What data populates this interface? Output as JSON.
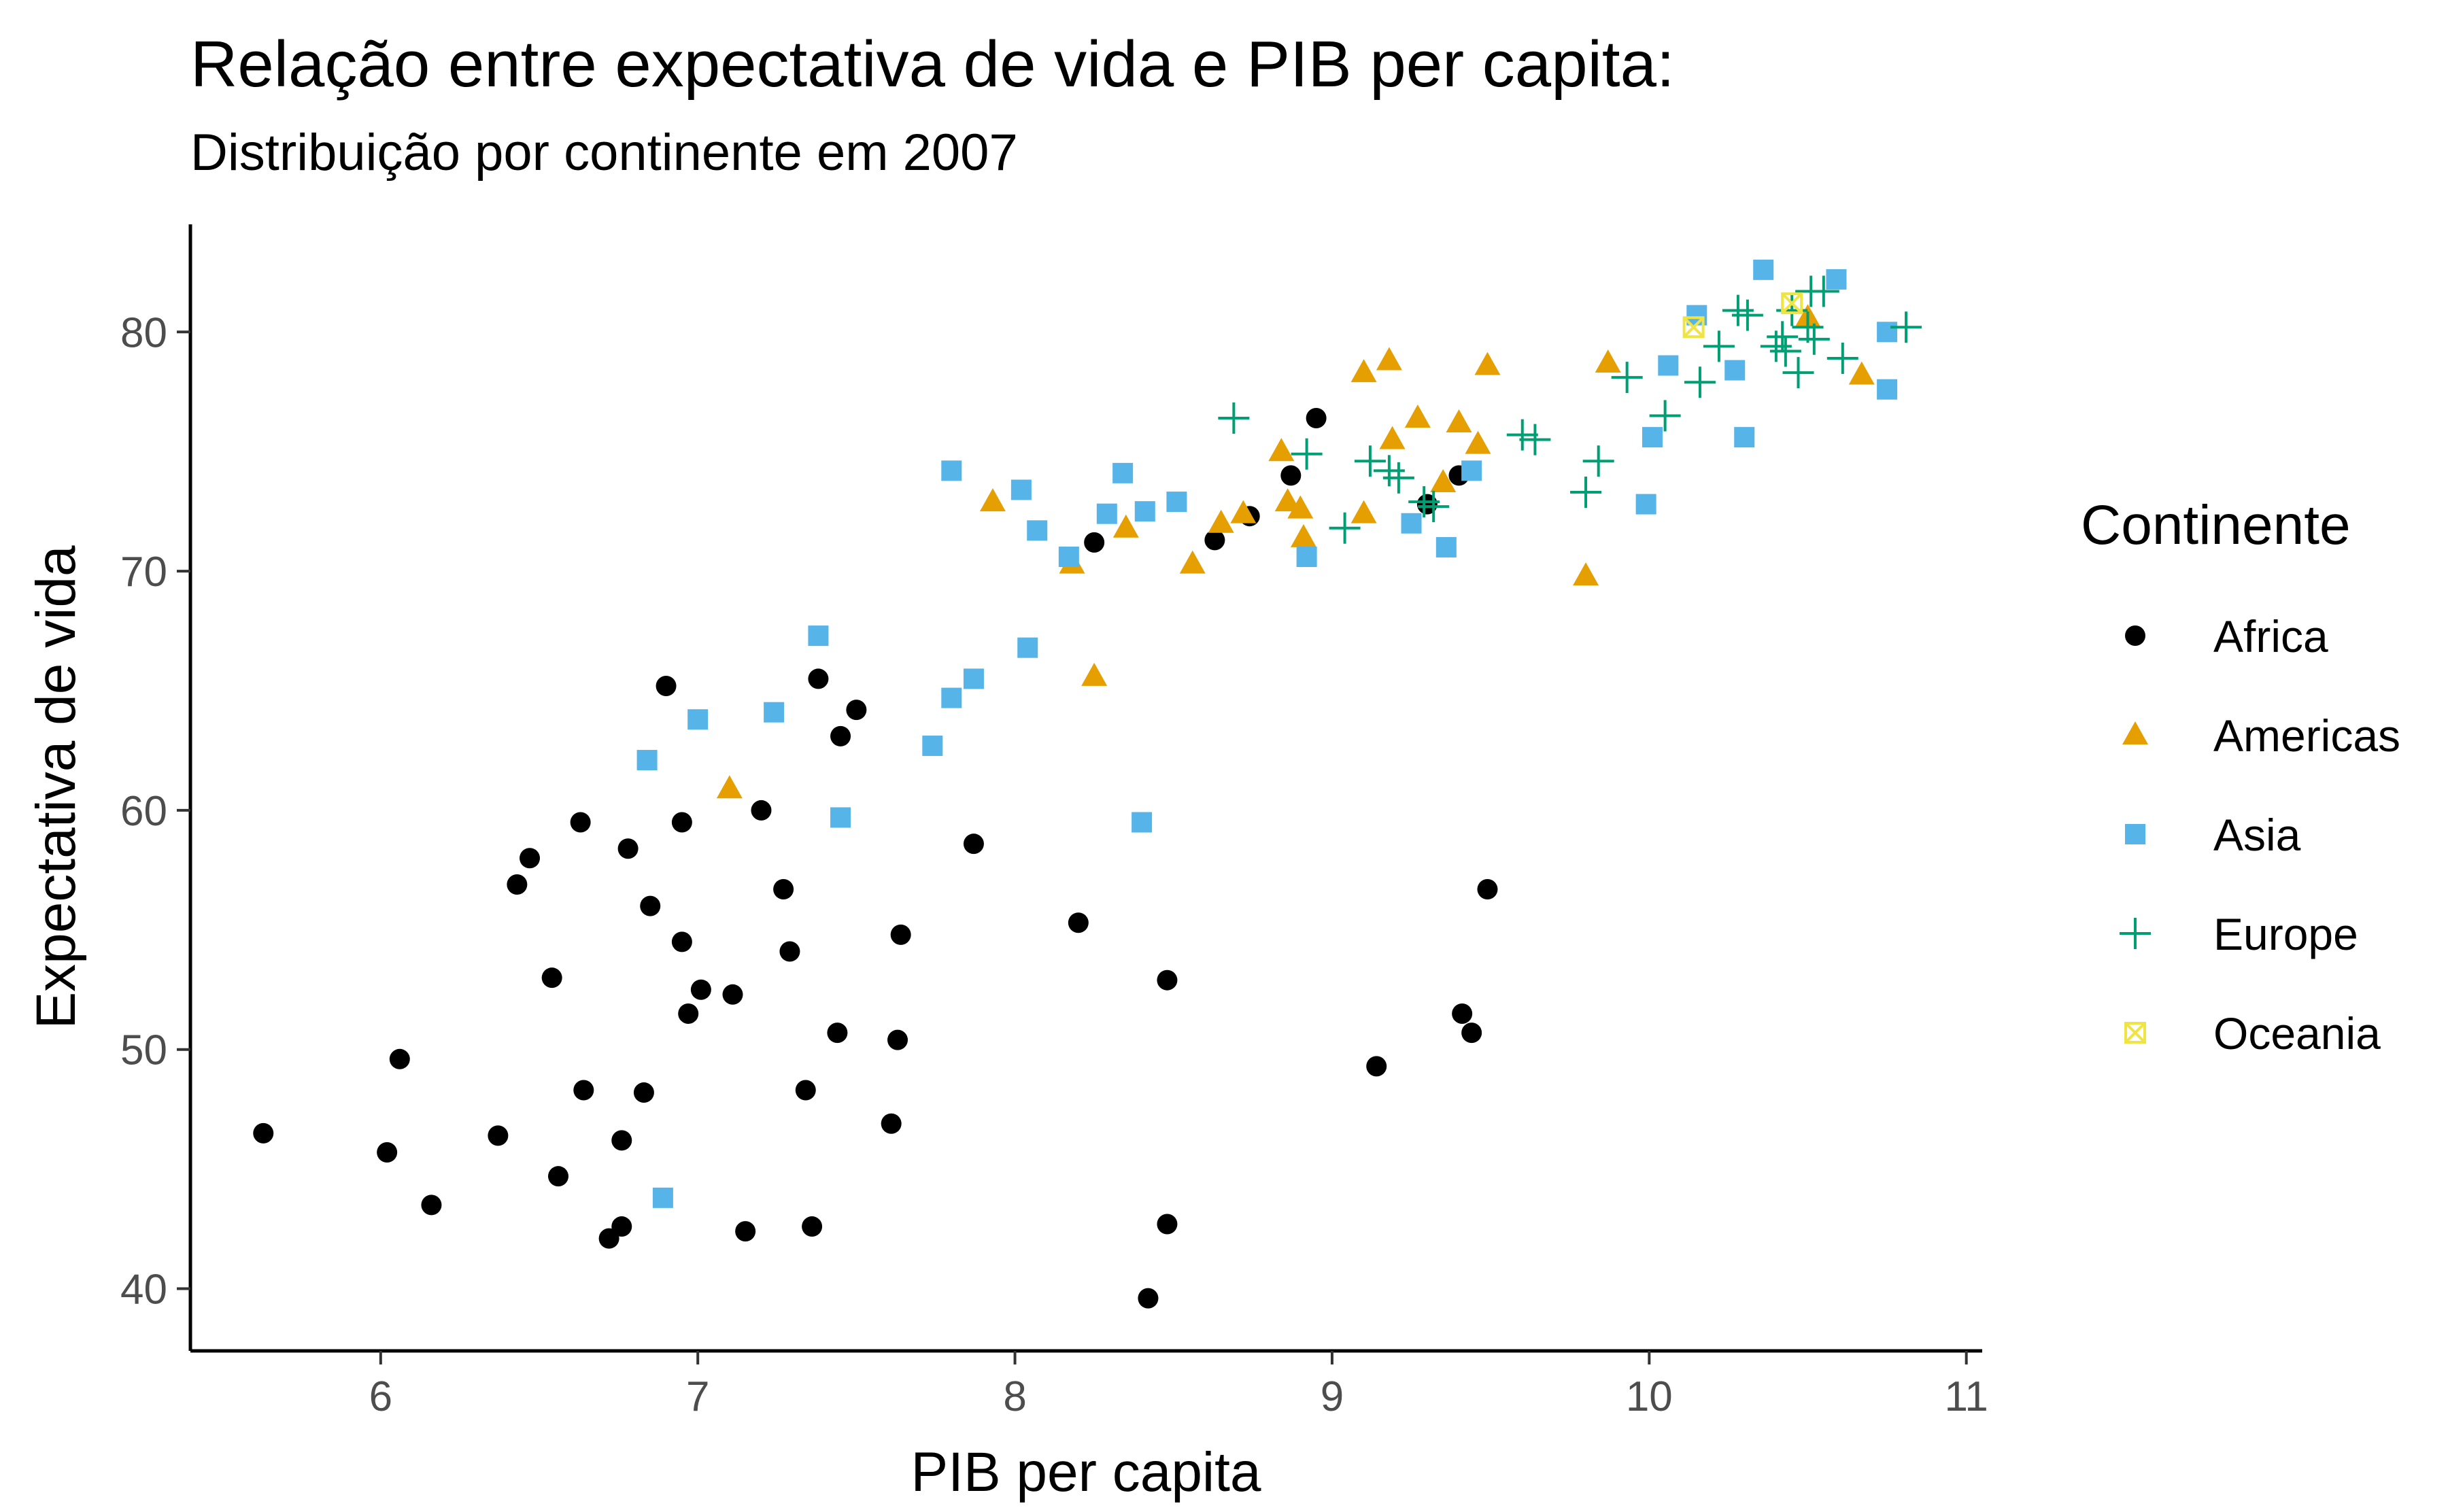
{
  "chart_data": {
    "type": "scatter",
    "title": "Relação entre expectativa de vida e PIB per capita:",
    "subtitle": "Distribuição por continente em 2007",
    "xlabel": "PIB per capita",
    "ylabel": "Expectativa de vida",
    "xlim": [
      5.4,
      11.05
    ],
    "ylim": [
      37.4,
      84.5
    ],
    "x_ticks": [
      6,
      7,
      8,
      9,
      10,
      11
    ],
    "y_ticks": [
      40,
      50,
      60,
      70,
      80
    ],
    "grid": false,
    "legend": {
      "title": "Continente",
      "position": "right"
    },
    "series": [
      {
        "name": "Africa",
        "color": "#000000",
        "marker": "circle",
        "points": [
          [
            5.63,
            46.5
          ],
          [
            6.02,
            45.7
          ],
          [
            6.06,
            49.6
          ],
          [
            6.16,
            43.5
          ],
          [
            6.37,
            46.4
          ],
          [
            6.43,
            56.9
          ],
          [
            6.47,
            58.0
          ],
          [
            6.54,
            53.0
          ],
          [
            6.56,
            44.7
          ],
          [
            6.63,
            59.5
          ],
          [
            6.64,
            48.3
          ],
          [
            6.72,
            42.1
          ],
          [
            6.76,
            42.6
          ],
          [
            6.76,
            46.2
          ],
          [
            6.78,
            58.4
          ],
          [
            6.83,
            48.2
          ],
          [
            6.85,
            56.0
          ],
          [
            6.9,
            65.2
          ],
          [
            6.95,
            54.5
          ],
          [
            6.95,
            59.5
          ],
          [
            6.97,
            51.5
          ],
          [
            7.01,
            52.5
          ],
          [
            7.11,
            52.3
          ],
          [
            7.15,
            42.4
          ],
          [
            7.2,
            60.0
          ],
          [
            7.27,
            56.7
          ],
          [
            7.29,
            54.1
          ],
          [
            7.34,
            48.3
          ],
          [
            7.36,
            42.6
          ],
          [
            7.38,
            65.5
          ],
          [
            7.44,
            50.7
          ],
          [
            7.45,
            63.1
          ],
          [
            7.5,
            64.2
          ],
          [
            7.61,
            46.9
          ],
          [
            7.63,
            50.4
          ],
          [
            7.64,
            54.8
          ],
          [
            7.87,
            58.6
          ],
          [
            8.2,
            55.3
          ],
          [
            8.25,
            71.2
          ],
          [
            8.42,
            39.6
          ],
          [
            8.48,
            52.9
          ],
          [
            8.48,
            42.7
          ],
          [
            8.63,
            71.3
          ],
          [
            8.74,
            72.3
          ],
          [
            8.87,
            74.0
          ],
          [
            8.95,
            76.4
          ],
          [
            9.14,
            49.3
          ],
          [
            9.3,
            72.8
          ],
          [
            9.4,
            74.0
          ],
          [
            9.41,
            51.5
          ],
          [
            9.44,
            50.7
          ],
          [
            9.49,
            56.7
          ]
        ]
      },
      {
        "name": "Americas",
        "color": "#E69F00",
        "marker": "triangle",
        "points": [
          [
            7.1,
            60.9
          ],
          [
            7.93,
            72.9
          ],
          [
            8.18,
            70.3
          ],
          [
            8.25,
            65.6
          ],
          [
            8.35,
            71.8
          ],
          [
            8.56,
            70.3
          ],
          [
            8.65,
            72.0
          ],
          [
            8.72,
            72.4
          ],
          [
            8.84,
            75.0
          ],
          [
            8.86,
            72.9
          ],
          [
            8.9,
            72.6
          ],
          [
            8.91,
            71.4
          ],
          [
            9.1,
            72.4
          ],
          [
            9.1,
            78.3
          ],
          [
            9.18,
            78.8
          ],
          [
            9.19,
            75.5
          ],
          [
            9.27,
            76.4
          ],
          [
            9.35,
            73.7
          ],
          [
            9.4,
            76.2
          ],
          [
            9.46,
            75.3
          ],
          [
            9.49,
            78.6
          ],
          [
            9.8,
            69.8
          ],
          [
            9.87,
            78.7
          ],
          [
            10.5,
            80.6
          ],
          [
            10.67,
            78.2
          ]
        ]
      },
      {
        "name": "Asia",
        "color": "#56B4E9",
        "marker": "square",
        "points": [
          [
            6.84,
            62.1
          ],
          [
            6.89,
            43.8
          ],
          [
            7.0,
            63.8
          ],
          [
            7.24,
            64.1
          ],
          [
            7.38,
            67.3
          ],
          [
            7.45,
            59.7
          ],
          [
            7.74,
            62.7
          ],
          [
            7.8,
            64.7
          ],
          [
            7.8,
            74.2
          ],
          [
            7.87,
            65.5
          ],
          [
            8.02,
            73.4
          ],
          [
            8.04,
            66.8
          ],
          [
            8.07,
            71.7
          ],
          [
            8.17,
            70.6
          ],
          [
            8.29,
            72.4
          ],
          [
            8.34,
            74.1
          ],
          [
            8.4,
            59.5
          ],
          [
            8.41,
            72.5
          ],
          [
            8.51,
            72.9
          ],
          [
            8.92,
            70.6
          ],
          [
            9.25,
            72.0
          ],
          [
            9.36,
            71.0
          ],
          [
            9.44,
            74.2
          ],
          [
            9.99,
            72.8
          ],
          [
            10.01,
            75.6
          ],
          [
            10.06,
            78.6
          ],
          [
            10.15,
            80.7
          ],
          [
            10.27,
            78.4
          ],
          [
            10.3,
            75.6
          ],
          [
            10.36,
            82.6
          ],
          [
            10.59,
            82.2
          ],
          [
            10.75,
            80.0
          ],
          [
            10.75,
            77.6
          ]
        ]
      },
      {
        "name": "Europe",
        "color": "#009E73",
        "marker": "plus",
        "points": [
          [
            8.69,
            76.4
          ],
          [
            8.92,
            74.9
          ],
          [
            9.04,
            71.8
          ],
          [
            9.12,
            74.6
          ],
          [
            9.18,
            74.2
          ],
          [
            9.21,
            73.9
          ],
          [
            9.29,
            72.9
          ],
          [
            9.32,
            72.7
          ],
          [
            9.6,
            75.7
          ],
          [
            9.64,
            75.5
          ],
          [
            9.8,
            73.3
          ],
          [
            9.84,
            74.6
          ],
          [
            9.93,
            78.1
          ],
          [
            10.05,
            76.5
          ],
          [
            10.16,
            77.9
          ],
          [
            10.22,
            79.4
          ],
          [
            10.28,
            80.9
          ],
          [
            10.31,
            80.7
          ],
          [
            10.4,
            79.4
          ],
          [
            10.42,
            79.8
          ],
          [
            10.43,
            79.2
          ],
          [
            10.45,
            80.9
          ],
          [
            10.47,
            78.3
          ],
          [
            10.5,
            80.2
          ],
          [
            10.51,
            81.7
          ],
          [
            10.52,
            79.7
          ],
          [
            10.55,
            81.7
          ],
          [
            10.61,
            78.9
          ],
          [
            10.81,
            80.2
          ]
        ]
      },
      {
        "name": "Oceania",
        "color": "#F0E442",
        "marker": "square-x",
        "points": [
          [
            10.14,
            80.2
          ],
          [
            10.45,
            81.2
          ]
        ]
      }
    ]
  }
}
